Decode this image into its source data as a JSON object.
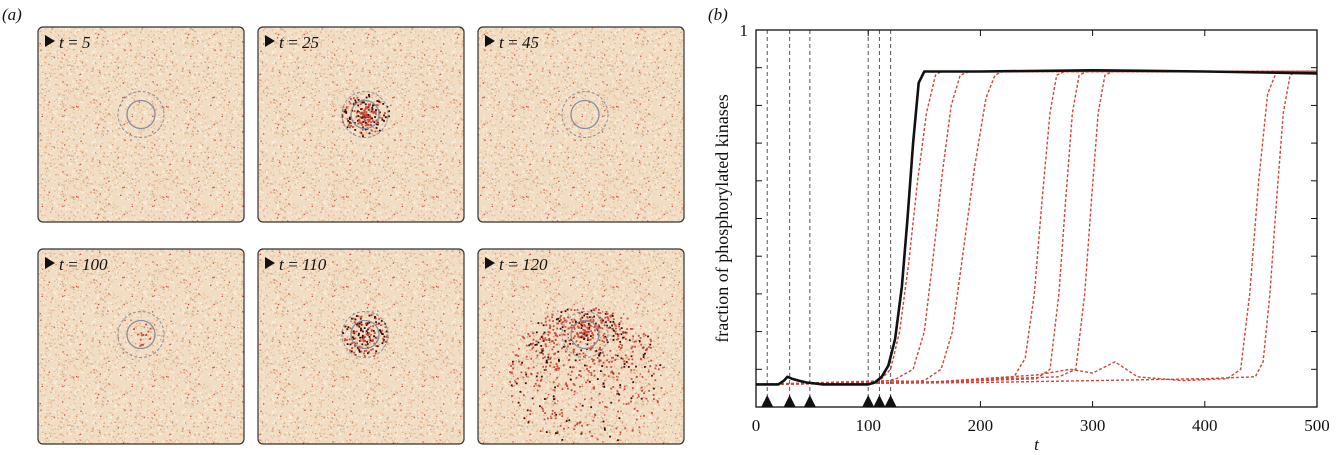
{
  "panel_a": {
    "label": "(a)",
    "snapshots": [
      {
        "label": "t = 5",
        "t": 5,
        "activity": "low"
      },
      {
        "label": "t = 25",
        "t": 25,
        "activity": "local"
      },
      {
        "label": "t = 45",
        "t": 45,
        "activity": "low"
      },
      {
        "label": "t = 100",
        "t": 100,
        "activity": "low"
      },
      {
        "label": "t = 110",
        "t": 110,
        "activity": "local"
      },
      {
        "label": "t = 120",
        "t": 120,
        "activity": "spreading"
      }
    ],
    "colors": {
      "background": "#f1ddc3",
      "speckle_light": "#fbf3e9",
      "speckle_mid": "#e5b992",
      "speckle_red": "#c84b3b",
      "speckle_dark": "#3a0a08",
      "ring": "#8c8c9c"
    }
  },
  "panel_b": {
    "label": "(b)",
    "chart_data": {
      "type": "line",
      "title": "",
      "xlabel": "t",
      "ylabel": "fraction of phosphorylated kinases",
      "xlim": [
        0,
        500
      ],
      "ylim": [
        0,
        1
      ],
      "xticks": [
        0,
        100,
        200,
        300,
        400,
        500
      ],
      "ytick_labels": [
        {
          "value": 1,
          "label": "1"
        }
      ],
      "y_minor_ticks": [
        0.1,
        0.2,
        0.3,
        0.4,
        0.5,
        0.6,
        0.7,
        0.8,
        0.9
      ],
      "event_markers_t": [
        10,
        30,
        48,
        100,
        110,
        120
      ],
      "series": [
        {
          "style": "solid",
          "color": "#111111",
          "points": [
            [
              0,
              0.06
            ],
            [
              20,
              0.06
            ],
            [
              25,
              0.07
            ],
            [
              28,
              0.08
            ],
            [
              32,
              0.075
            ],
            [
              38,
              0.07
            ],
            [
              45,
              0.065
            ],
            [
              60,
              0.06
            ],
            [
              100,
              0.06
            ],
            [
              106,
              0.065
            ],
            [
              112,
              0.08
            ],
            [
              118,
              0.11
            ],
            [
              124,
              0.18
            ],
            [
              130,
              0.32
            ],
            [
              135,
              0.5
            ],
            [
              140,
              0.7
            ],
            [
              145,
              0.86
            ],
            [
              150,
              0.89
            ],
            [
              200,
              0.89
            ],
            [
              300,
              0.893
            ],
            [
              400,
              0.89
            ],
            [
              500,
              0.885
            ]
          ]
        },
        {
          "style": "dashed",
          "color": "#d0463a",
          "points": [
            [
              0,
              0.06
            ],
            [
              100,
              0.065
            ],
            [
              112,
              0.075
            ],
            [
              120,
              0.1
            ],
            [
              128,
              0.2
            ],
            [
              136,
              0.38
            ],
            [
              144,
              0.6
            ],
            [
              152,
              0.78
            ],
            [
              160,
              0.88
            ],
            [
              165,
              0.89
            ],
            [
              500,
              0.89
            ]
          ]
        },
        {
          "style": "dashed",
          "color": "#d0463a",
          "points": [
            [
              0,
              0.06
            ],
            [
              110,
              0.065
            ],
            [
              125,
              0.075
            ],
            [
              140,
              0.1
            ],
            [
              150,
              0.2
            ],
            [
              158,
              0.4
            ],
            [
              166,
              0.62
            ],
            [
              174,
              0.8
            ],
            [
              182,
              0.88
            ],
            [
              190,
              0.89
            ],
            [
              500,
              0.89
            ]
          ]
        },
        {
          "style": "dashed",
          "color": "#d0463a",
          "points": [
            [
              0,
              0.06
            ],
            [
              120,
              0.065
            ],
            [
              150,
              0.07
            ],
            [
              165,
              0.1
            ],
            [
              175,
              0.2
            ],
            [
              185,
              0.42
            ],
            [
              195,
              0.64
            ],
            [
              205,
              0.82
            ],
            [
              213,
              0.88
            ],
            [
              220,
              0.89
            ],
            [
              500,
              0.89
            ]
          ]
        },
        {
          "style": "dashed",
          "color": "#d0463a",
          "points": [
            [
              0,
              0.06
            ],
            [
              120,
              0.07
            ],
            [
              160,
              0.065
            ],
            [
              200,
              0.07
            ],
            [
              230,
              0.08
            ],
            [
              240,
              0.13
            ],
            [
              248,
              0.3
            ],
            [
              255,
              0.55
            ],
            [
              262,
              0.78
            ],
            [
              268,
              0.88
            ],
            [
              275,
              0.89
            ],
            [
              500,
              0.89
            ]
          ]
        },
        {
          "style": "dashed",
          "color": "#d0463a",
          "points": [
            [
              0,
              0.06
            ],
            [
              130,
              0.065
            ],
            [
              200,
              0.07
            ],
            [
              250,
              0.075
            ],
            [
              262,
              0.1
            ],
            [
              270,
              0.3
            ],
            [
              276,
              0.55
            ],
            [
              282,
              0.78
            ],
            [
              288,
              0.88
            ],
            [
              295,
              0.89
            ],
            [
              500,
              0.89
            ]
          ]
        },
        {
          "style": "dashed",
          "color": "#d0463a",
          "points": [
            [
              0,
              0.06
            ],
            [
              150,
              0.065
            ],
            [
              220,
              0.075
            ],
            [
              270,
              0.08
            ],
            [
              285,
              0.1
            ],
            [
              293,
              0.3
            ],
            [
              299,
              0.55
            ],
            [
              305,
              0.78
            ],
            [
              311,
              0.88
            ],
            [
              318,
              0.89
            ],
            [
              500,
              0.89
            ]
          ]
        },
        {
          "style": "dashed",
          "color": "#d0463a",
          "points": [
            [
              0,
              0.06
            ],
            [
              150,
              0.065
            ],
            [
              250,
              0.085
            ],
            [
              280,
              0.1
            ],
            [
              300,
              0.09
            ],
            [
              320,
              0.12
            ],
            [
              340,
              0.08
            ],
            [
              380,
              0.07
            ],
            [
              420,
              0.075
            ],
            [
              432,
              0.1
            ],
            [
              440,
              0.3
            ],
            [
              448,
              0.6
            ],
            [
              456,
              0.83
            ],
            [
              464,
              0.89
            ],
            [
              500,
              0.89
            ]
          ]
        },
        {
          "style": "dashed",
          "color": "#d0463a",
          "points": [
            [
              0,
              0.06
            ],
            [
              200,
              0.065
            ],
            [
              300,
              0.07
            ],
            [
              400,
              0.075
            ],
            [
              445,
              0.08
            ],
            [
              452,
              0.12
            ],
            [
              458,
              0.3
            ],
            [
              464,
              0.55
            ],
            [
              470,
              0.78
            ],
            [
              476,
              0.88
            ],
            [
              482,
              0.89
            ],
            [
              500,
              0.89
            ]
          ]
        }
      ]
    }
  }
}
